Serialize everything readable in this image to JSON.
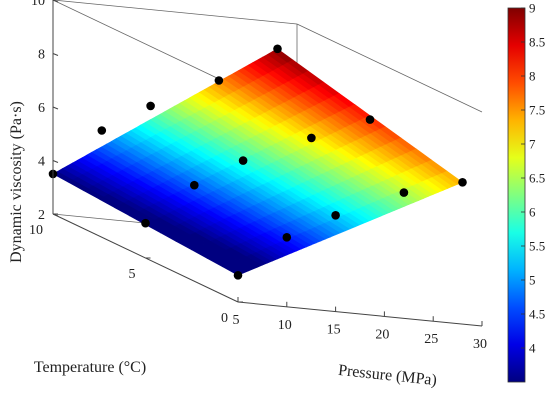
{
  "chart_data": {
    "type": "surface3d",
    "title": "",
    "xlabel": "Pressure (MPa)",
    "ylabel": "Temperature (°C)",
    "zlabel": "Dynamic viscosity (Pa·s)",
    "xlim": [
      5,
      30
    ],
    "ylim": [
      0,
      10
    ],
    "zlim": [
      2,
      10
    ],
    "x_ticks": [
      "5",
      "10",
      "15",
      "20",
      "25",
      "30"
    ],
    "y_ticks": [
      "0",
      "5",
      "10"
    ],
    "z_ticks": [
      "2",
      "4",
      "6",
      "8",
      "10"
    ],
    "colormap": "jet",
    "colorbar": {
      "range": [
        3.5,
        9
      ],
      "ticks": [
        "4",
        "4.5",
        "5",
        "5.5",
        "6",
        "6.5",
        "7",
        "7.5",
        "8",
        "8.5",
        "9"
      ]
    },
    "surface": {
      "x_range": [
        5,
        28
      ],
      "y_range": [
        0,
        10
      ],
      "corners": {
        "x5_y10": 3.5,
        "x5_y0": 3.0,
        "x28_y10": 9.0,
        "x28_y0": 7.3
      }
    },
    "points": [
      {
        "x": 5,
        "y": 0,
        "z": 3.0
      },
      {
        "x": 5,
        "y": 10,
        "z": 3.5
      },
      {
        "x": 5,
        "y": 5,
        "z": 3.3
      },
      {
        "x": 10,
        "y": 0,
        "z": 4.6
      },
      {
        "x": 10,
        "y": 10,
        "z": 5.3
      },
      {
        "x": 10,
        "y": 5,
        "z": 4.9
      },
      {
        "x": 15,
        "y": 0,
        "z": 5.6
      },
      {
        "x": 15,
        "y": 10,
        "z": 6.4
      },
      {
        "x": 15,
        "y": 5,
        "z": 6.0
      },
      {
        "x": 22,
        "y": 0,
        "z": 6.7
      },
      {
        "x": 22,
        "y": 10,
        "z": 7.6
      },
      {
        "x": 22,
        "y": 5,
        "z": 7.1
      },
      {
        "x": 28,
        "y": 0,
        "z": 7.3
      },
      {
        "x": 28,
        "y": 10,
        "z": 9.0
      },
      {
        "x": 28,
        "y": 5,
        "z": 8.0
      }
    ],
    "grid": false,
    "colorbar_position": "right"
  }
}
